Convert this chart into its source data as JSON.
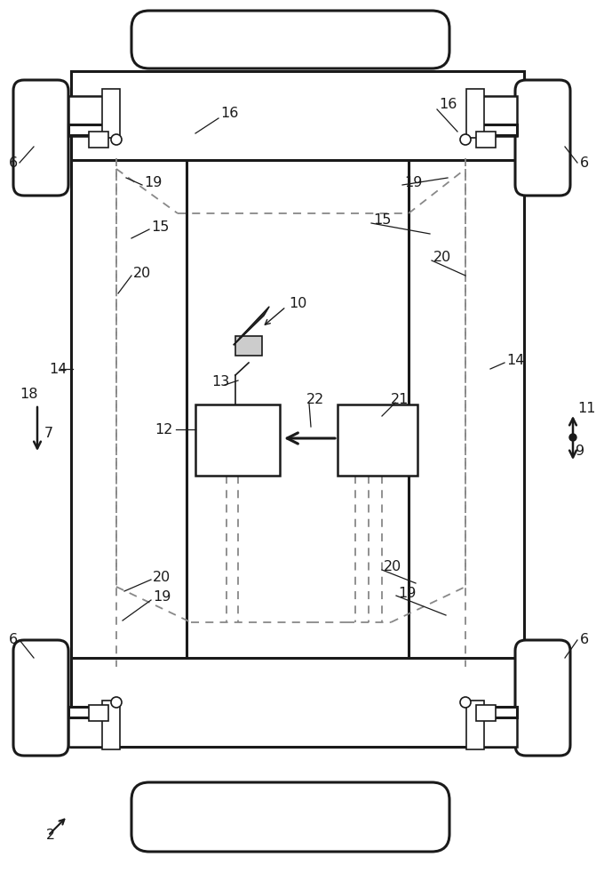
{
  "bg_color": "#ffffff",
  "line_color": "#1a1a1a",
  "dashed_color": "#888888"
}
